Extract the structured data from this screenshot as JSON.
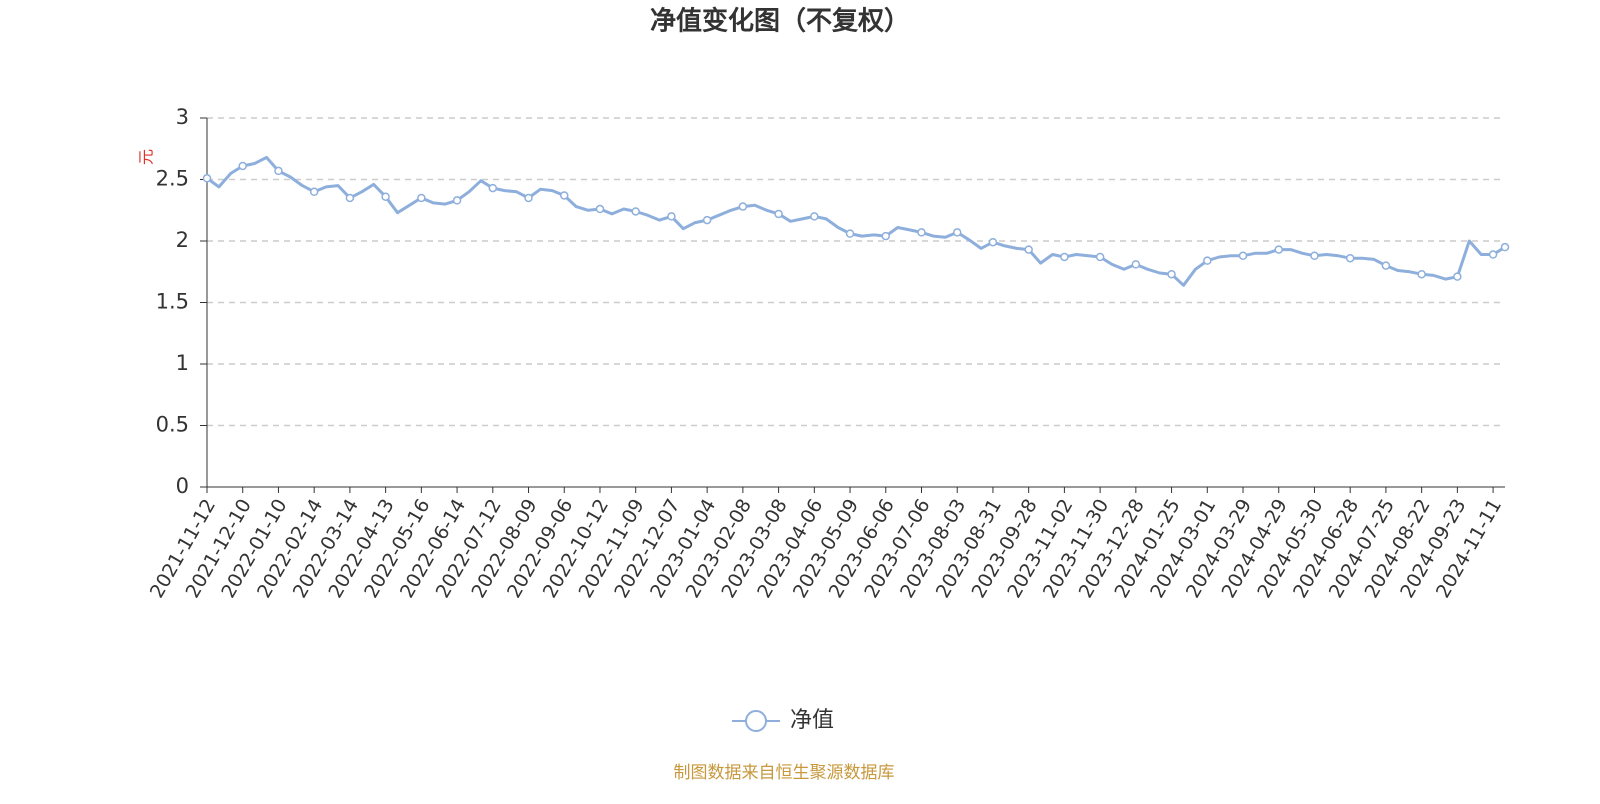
{
  "chart_data": {
    "type": "line",
    "title": "净值变化图（不复权）",
    "y_axis_label": "元",
    "source": "制图数据来自恒生聚源数据库",
    "ylim": [
      0,
      3
    ],
    "yticks": [
      0,
      0.5,
      1,
      1.5,
      2,
      2.5,
      3
    ],
    "grid": true,
    "legend": "bottom",
    "categories": [
      "2021-11-12",
      null,
      null,
      "2021-12-10",
      null,
      null,
      "2022-01-10",
      null,
      null,
      "2022-02-14",
      null,
      null,
      "2022-03-14",
      null,
      null,
      "2022-04-13",
      null,
      null,
      "2022-05-16",
      null,
      null,
      "2022-06-14",
      null,
      null,
      "2022-07-12",
      null,
      null,
      "2022-08-09",
      null,
      null,
      "2022-09-06",
      null,
      null,
      "2022-10-12",
      null,
      null,
      "2022-11-09",
      null,
      null,
      "2022-12-07",
      null,
      null,
      "2023-01-04",
      null,
      null,
      "2023-02-08",
      null,
      null,
      "2023-03-08",
      null,
      null,
      "2023-04-06",
      null,
      null,
      "2023-05-09",
      null,
      null,
      "2023-06-06",
      null,
      null,
      "2023-07-06",
      null,
      null,
      "2023-08-03",
      null,
      null,
      "2023-08-31",
      null,
      null,
      "2023-09-28",
      null,
      null,
      "2023-11-02",
      null,
      null,
      "2023-11-30",
      null,
      null,
      "2023-12-28",
      null,
      null,
      "2024-01-25",
      null,
      null,
      "2024-03-01",
      null,
      null,
      "2024-03-29",
      null,
      null,
      "2024-04-29",
      null,
      null,
      "2024-05-30",
      null,
      null,
      "2024-06-28",
      null,
      null,
      "2024-07-25",
      null,
      null,
      "2024-08-22",
      null,
      null,
      "2024-09-23",
      null,
      null,
      "2024-11-11",
      null
    ],
    "series": [
      {
        "name": "净值",
        "color": "#8eafdc",
        "values": [
          2.51,
          2.44,
          2.55,
          2.61,
          2.63,
          2.68,
          2.57,
          2.52,
          2.45,
          2.4,
          2.44,
          2.45,
          2.35,
          2.4,
          2.46,
          2.36,
          2.23,
          2.29,
          2.35,
          2.31,
          2.3,
          2.33,
          2.4,
          2.49,
          2.43,
          2.41,
          2.4,
          2.35,
          2.42,
          2.41,
          2.37,
          2.28,
          2.25,
          2.26,
          2.22,
          2.26,
          2.24,
          2.21,
          2.17,
          2.2,
          2.1,
          2.15,
          2.17,
          2.21,
          2.25,
          2.28,
          2.29,
          2.25,
          2.22,
          2.16,
          2.18,
          2.2,
          2.18,
          2.11,
          2.06,
          2.04,
          2.05,
          2.04,
          2.11,
          2.09,
          2.07,
          2.04,
          2.03,
          2.07,
          2.01,
          1.94,
          1.99,
          1.96,
          1.94,
          1.93,
          1.82,
          1.89,
          1.87,
          1.89,
          1.88,
          1.87,
          1.81,
          1.77,
          1.81,
          1.77,
          1.74,
          1.73,
          1.64,
          1.77,
          1.84,
          1.87,
          1.88,
          1.88,
          1.9,
          1.9,
          1.93,
          1.93,
          1.9,
          1.88,
          1.89,
          1.88,
          1.86,
          1.86,
          1.85,
          1.8,
          1.76,
          1.75,
          1.73,
          1.72,
          1.69,
          1.71,
          2.0,
          1.89,
          1.89,
          1.95
        ]
      }
    ]
  }
}
